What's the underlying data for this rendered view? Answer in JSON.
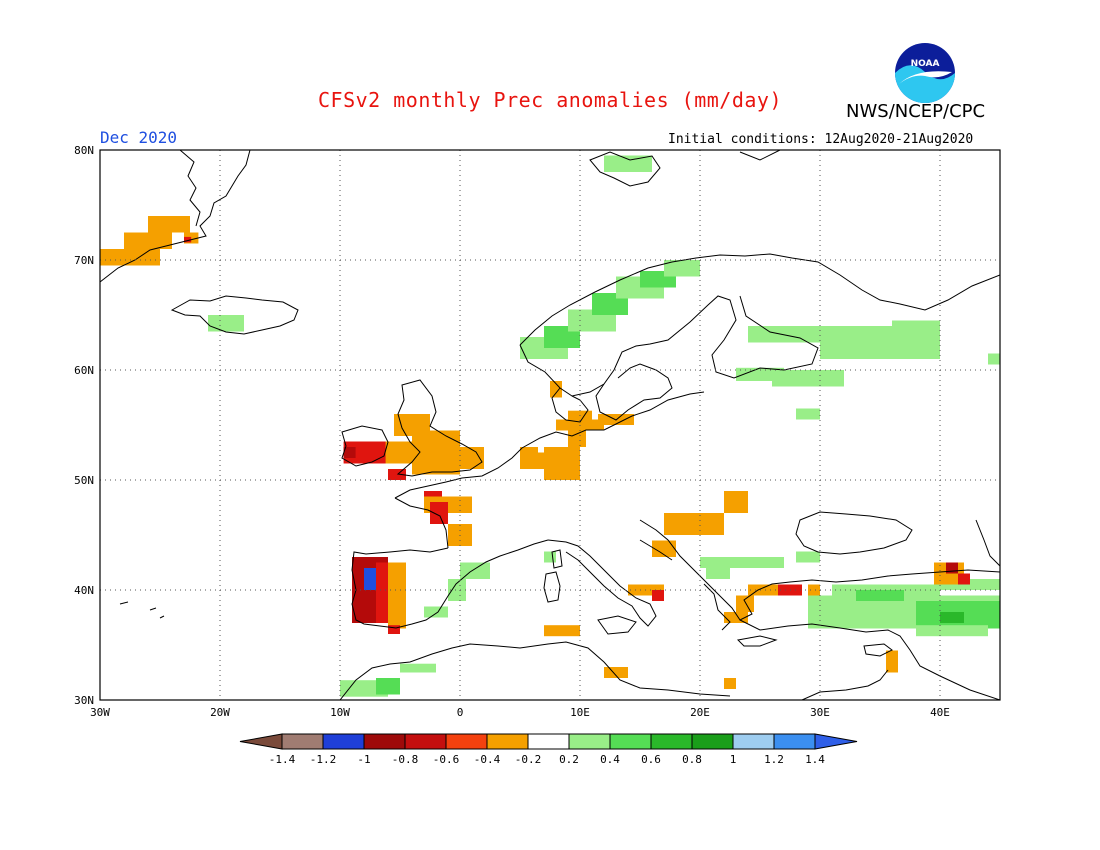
{
  "header": {
    "title": "CFSv2 monthly Prec anomalies (mm/day)",
    "agency": "NWS/NCEP/CPC",
    "logo_text": "NOAA",
    "period": "Dec 2020",
    "initial_conditions": "Initial conditions: 12Aug2020-21Aug2020"
  },
  "map": {
    "lon_range": [
      -30,
      45
    ],
    "lat_range": [
      30,
      80
    ],
    "grid_lines": "dotted",
    "lon_ticks": [
      "30W",
      "20W",
      "10W",
      "0",
      "10E",
      "20E",
      "30E",
      "40E"
    ],
    "lat_ticks": [
      "80N",
      "70N",
      "60N",
      "50N",
      "40N",
      "30N"
    ]
  },
  "legend": {
    "labels": [
      "-1.4",
      "-1.2",
      "-1",
      "-0.8",
      "-0.6",
      "-0.4",
      "-0.2",
      "0.2",
      "0.4",
      "0.6",
      "0.8",
      "1",
      "1.2",
      "1.4"
    ],
    "colors": [
      "#7a4a3a",
      "#a07c72",
      "#1f3fd8",
      "#9e0a0a",
      "#c40f0f",
      "#f4410f",
      "#f5a000",
      "#ffffff",
      "#99ee88",
      "#55dd55",
      "#2ab82a",
      "#1a9e1a",
      "#9ecdf0",
      "#3b8ff0",
      "#2f5fe8"
    ]
  },
  "anomaly_colors": {
    "orange": "#f5a000",
    "red": "#e0150f",
    "darkred": "#b40a0a",
    "blue": "#1f4fe0",
    "lightgreen": "#99ee88",
    "green": "#55dd55",
    "darkgreen": "#2ab82a"
  }
}
